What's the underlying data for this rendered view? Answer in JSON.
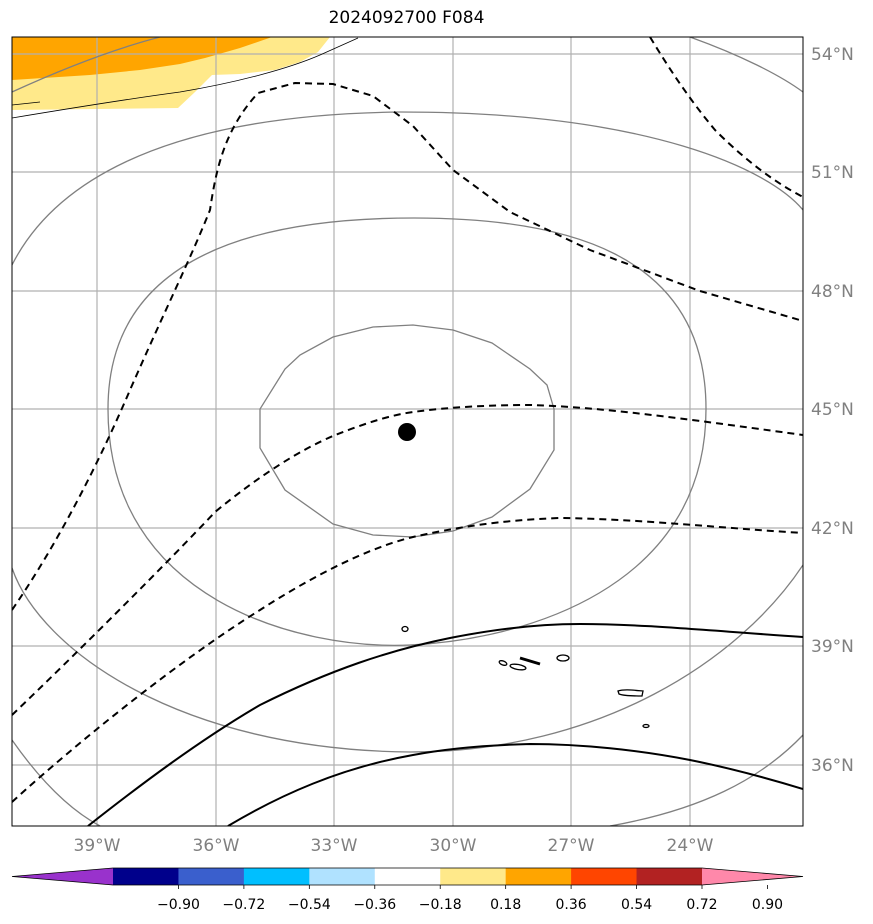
{
  "title": "2024092700 F084",
  "map": {
    "lon_labels": [
      "39°W",
      "36°W",
      "33°W",
      "30°W",
      "27°W",
      "24°W"
    ],
    "lat_labels": [
      "54°N",
      "51°N",
      "48°N",
      "45°N",
      "42°N",
      "39°N",
      "36°N"
    ],
    "label_color": "#808080",
    "gridline_color": "#b0b0b0",
    "center_marker": "filled black circle"
  },
  "colorbar": {
    "ticks": [
      "−0.90",
      "−0.72",
      "−0.54",
      "−0.36",
      "−0.18",
      "0.18",
      "0.36",
      "0.54",
      "0.72",
      "0.90"
    ],
    "colors": [
      "#9932CC",
      "#00008B",
      "#3A5FCD",
      "#00BFFF",
      "#B0E2FF",
      "#FFFFFF",
      "#FFE98A",
      "#FFA500",
      "#FF4500",
      "#B22222",
      "#FF88AA"
    ]
  }
}
